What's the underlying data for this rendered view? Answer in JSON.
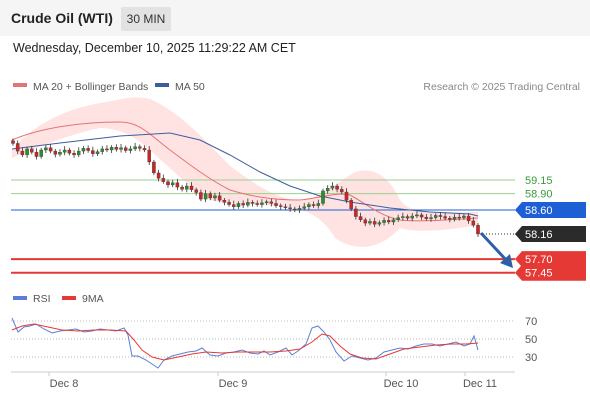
{
  "header": {
    "title": "Crude Oil (WTI)",
    "interval": "30 MIN"
  },
  "datetime": "Wednesday, December 10, 2025 11:29:22 AM CET",
  "legend": {
    "ma20": "MA 20 + Bollinger Bands",
    "ma50": "MA 50",
    "credit": "Research © 2025 Trading Central"
  },
  "rsi_legend": {
    "rsi": "RSI",
    "ma": "9MA"
  },
  "colors": {
    "bull": "#2e8b2e",
    "bear": "#c62828",
    "ma20": "#e57373",
    "ma50": "#3d5e9e",
    "band": "#ffe3e3",
    "resistance": "#9bd08f",
    "support": "#e53935",
    "pivot": "#1e5fd6",
    "arrow": "#2f5ea8",
    "rsi": "#5b7fd6",
    "rsi_ma": "#e53935"
  },
  "chart_data": {
    "type": "candlestick",
    "x_labels": [
      "Dec 8",
      "Dec 9",
      "Dec 10",
      "Dec 11"
    ],
    "y_range": [
      57.2,
      60.2
    ],
    "levels": [
      {
        "label": "59.15",
        "type": "resistance",
        "value": 59.15
      },
      {
        "label": "58.90",
        "type": "resistance",
        "value": 58.9
      },
      {
        "label": "58.60",
        "type": "pivot",
        "value": 58.6
      },
      {
        "label": "58.16",
        "type": "last",
        "value": 58.16
      },
      {
        "label": "57.70",
        "type": "support",
        "value": 57.7
      },
      {
        "label": "57.45",
        "type": "support",
        "value": 57.45
      }
    ],
    "close": [
      59.82,
      59.68,
      59.61,
      59.72,
      59.66,
      59.58,
      59.7,
      59.74,
      59.68,
      59.62,
      59.66,
      59.7,
      59.64,
      59.61,
      59.68,
      59.73,
      59.69,
      59.63,
      59.67,
      59.72,
      59.7,
      59.75,
      59.71,
      59.74,
      59.69,
      59.72,
      59.76,
      59.73,
      59.7,
      59.48,
      59.28,
      59.18,
      59.12,
      59.06,
      59.1,
      59.02,
      58.98,
      59.04,
      58.97,
      58.92,
      58.8,
      58.9,
      58.82,
      58.86,
      58.78,
      58.74,
      58.7,
      58.66,
      58.72,
      58.69,
      58.74,
      58.72,
      58.7,
      58.73,
      58.75,
      58.72,
      58.68,
      58.66,
      58.64,
      58.62,
      58.6,
      58.63,
      58.66,
      58.7,
      58.68,
      58.72,
      58.95,
      59.0,
      59.04,
      58.98,
      58.93,
      58.78,
      58.62,
      58.48,
      58.42,
      58.36,
      58.39,
      58.34,
      58.37,
      58.41,
      58.38,
      58.42,
      58.46,
      58.48,
      58.45,
      58.49,
      58.51,
      58.47,
      58.44,
      58.46,
      58.5,
      58.48,
      58.45,
      58.43,
      58.47,
      58.46,
      58.49,
      58.4,
      58.32,
      58.16
    ],
    "ma50_points": [
      [
        12,
        149
      ],
      [
        60,
        143
      ],
      [
        120,
        136
      ],
      [
        170,
        133
      ],
      [
        200,
        140
      ],
      [
        230,
        155
      ],
      [
        260,
        172
      ],
      [
        290,
        186
      ],
      [
        320,
        196
      ],
      [
        350,
        202
      ],
      [
        390,
        208
      ],
      [
        430,
        212
      ],
      [
        470,
        214
      ],
      [
        478,
        216
      ]
    ],
    "rsi": {
      "levels": [
        70,
        50,
        30
      ],
      "range": [
        15,
        85
      ],
      "last": 38
    }
  }
}
